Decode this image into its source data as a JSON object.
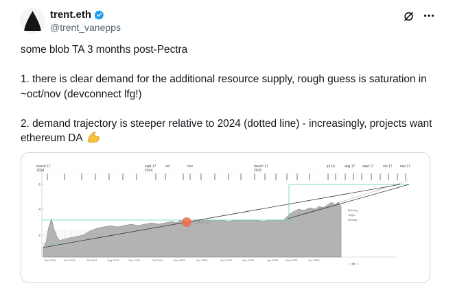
{
  "author": {
    "name": "trent.eth",
    "handle": "@trent_vanepps",
    "verified": true,
    "avatar_icon": "avatar-black-triangle"
  },
  "actions": {
    "grok_icon": "slash-circle-icon",
    "more_icon": "more-dots-icon"
  },
  "tweet": {
    "line1": "some blob TA 3 months post-Pectra",
    "line2": "1. there is clear demand for the additional resource supply, rough guess is saturation in ~oct/nov (devconnect lfg!)",
    "line3": "2. demand trajectory is steeper relative to 2024 (dotted line) - increasingly, projects want ethereum DA",
    "emoji": "flexed-biceps-icon"
  },
  "chart_data": {
    "type": "area",
    "title": "",
    "top_annotations": [
      {
        "label": "march 17",
        "sub": "2024"
      },
      {
        "label": "sept 17",
        "sub": "2024"
      },
      {
        "label": "oct",
        "sub": ""
      },
      {
        "label": "nov",
        "sub": ""
      },
      {
        "label": "march 17",
        "sub": "2025"
      },
      {
        "label": "jul 16",
        "sub": ""
      },
      {
        "label": "aug 17",
        "sub": ""
      },
      {
        "label": "sept 17",
        "sub": ""
      },
      {
        "label": "oct 17",
        "sub": ""
      },
      {
        "label": "nov 17",
        "sub": ""
      }
    ],
    "x_ticks": [
      "Mar 2024",
      "Jun 2024",
      "Jul 2024",
      "Aug 2024",
      "Sep 2024",
      "Oct 2024",
      "Nov 2024",
      "Jan 2025",
      "Feb 2025",
      "Mar 2025",
      "Apr 2025",
      "May 2025",
      "Jun 2025"
    ],
    "y_ticks": [
      "2",
      "4",
      "6"
    ],
    "watermark": "Dune",
    "colors": {
      "area": "#9a9a9a",
      "line": "#333333",
      "threshold": "#5fd0b4",
      "marker": "#555555"
    }
  }
}
